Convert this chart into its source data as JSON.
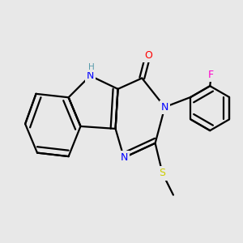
{
  "bg_color": "#e8e8e8",
  "atom_colors": {
    "N": "#0000ff",
    "O": "#ff0000",
    "S": "#cccc00",
    "F": "#ff00cc",
    "C": "#000000",
    "H": "#5599aa"
  },
  "line_color": "#000000",
  "line_width": 1.6,
  "figsize": [
    3.0,
    3.0
  ],
  "dpi": 100,
  "xlim": [
    -1.9,
    2.1
  ],
  "ylim": [
    -1.5,
    1.5
  ]
}
